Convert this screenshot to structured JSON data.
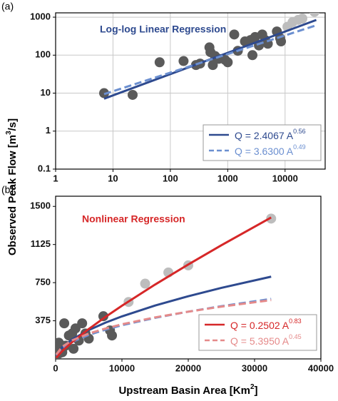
{
  "chart_data": [
    {
      "type": "scatter",
      "panel_label": "(a)",
      "title": "Log-log Linear Regression",
      "title_color": "#2e4a8f",
      "xscale": "log",
      "yscale": "log",
      "xlim": [
        1,
        50000
      ],
      "ylim": [
        0.1,
        1300
      ],
      "xticks": [
        1,
        10,
        100,
        1000,
        10000
      ],
      "yticks": [
        0.1,
        1,
        10,
        100,
        1000
      ],
      "grid": true,
      "legend": "lower right",
      "ylabel_parts": [
        "Observed Peak Flow [m",
        "3",
        "/s]"
      ],
      "series": [
        {
          "mark": "point",
          "color": "#5a5a5a",
          "x": [
            7,
            22,
            65,
            170,
            280,
            330,
            480,
            500,
            550,
            600,
            700,
            900,
            1000,
            1300,
            1500,
            2000,
            2500,
            2700,
            3000,
            3500,
            4000,
            4500,
            5000,
            7200,
            8200,
            8500
          ],
          "values": [
            10,
            9,
            65,
            70,
            55,
            60,
            160,
            120,
            55,
            95,
            80,
            75,
            65,
            350,
            130,
            230,
            250,
            100,
            300,
            180,
            350,
            250,
            200,
            420,
            280,
            230
          ]
        },
        {
          "mark": "point",
          "color": "#bdbdbd",
          "x": [
            11000,
            13500,
            17000,
            20000,
            32500
          ],
          "values": [
            560,
            740,
            850,
            920,
            1380
          ]
        },
        {
          "mark": "line",
          "dash": false,
          "color": "#2e4a8f",
          "text_color": "#2e4a8f",
          "name": "Q = 2.4067 A",
          "name_sup": "0.56",
          "x": [
            7,
            35000
          ],
          "values": [
            7.15,
            843
          ]
        },
        {
          "mark": "line",
          "dash": true,
          "color": "#6b8fd0",
          "text_color": "#6b8fd0",
          "name": "Q = 3.6300 A",
          "name_sup": "0.49",
          "x": [
            7,
            35000
          ],
          "values": [
            9.42,
            611
          ]
        }
      ]
    },
    {
      "type": "scatter",
      "panel_label": "(b)",
      "title": "Nonlinear Regression",
      "title_color": "#d62728",
      "xscale": "linear",
      "yscale": "linear",
      "xlim": [
        0,
        40000
      ],
      "ylim": [
        0,
        1600
      ],
      "xticks": [
        0,
        10000,
        20000,
        30000,
        40000
      ],
      "yticks": [
        375,
        750,
        1125,
        1500
      ],
      "grid": false,
      "legend": "lower right",
      "xlabel_parts": [
        "Upstream Basin Area [Km",
        "2",
        "]"
      ],
      "series": [
        {
          "mark": "point",
          "color": "#5a5a5a",
          "x": [
            7,
            22,
            65,
            170,
            280,
            330,
            480,
            500,
            550,
            600,
            700,
            900,
            1000,
            1300,
            1500,
            2000,
            2500,
            2700,
            3000,
            3500,
            4000,
            4500,
            5000,
            7200,
            8200,
            8500
          ],
          "values": [
            10,
            9,
            65,
            70,
            55,
            60,
            160,
            120,
            55,
            95,
            80,
            75,
            65,
            350,
            130,
            230,
            250,
            100,
            300,
            180,
            350,
            250,
            200,
            420,
            280,
            230
          ]
        },
        {
          "mark": "point",
          "color": "#bdbdbd",
          "x": [
            11000,
            13500,
            17000,
            20000,
            32500
          ],
          "values": [
            560,
            740,
            850,
            920,
            1380
          ]
        },
        {
          "mark": "line",
          "dash": false,
          "color": "#2e4a8f",
          "x": [
            100,
            1000,
            2500,
            5000,
            7500,
            10000,
            15000,
            20000,
            25000,
            32500
          ],
          "values": [
            31.7,
            115.2,
            192.3,
            283.7,
            356.1,
            418.3,
            525.0,
            616.4,
            698.8,
            808.7
          ]
        },
        {
          "mark": "line",
          "dash": true,
          "color": "#6b8fd0",
          "x": [
            100,
            1000,
            2500,
            5000,
            7500,
            10000,
            15000,
            20000,
            25000,
            32500
          ],
          "values": [
            34.7,
            107.1,
            167.7,
            235.6,
            287.5,
            331.1,
            404.0,
            464.6,
            518.7,
            590.2
          ]
        },
        {
          "mark": "line",
          "dash": false,
          "color": "#d62728",
          "text_color": "#d62728",
          "name": "Q = 0.2502 A",
          "name_sup": "0.83",
          "x": [
            100,
            1000,
            2500,
            5000,
            7500,
            10000,
            15000,
            20000,
            25000,
            32500
          ],
          "values": [
            11.4,
            77.3,
            165.4,
            294.0,
            412.1,
            522.7,
            731.3,
            928.5,
            1118.1,
            1390.6
          ]
        },
        {
          "mark": "line",
          "dash": true,
          "color": "#e58a8a",
          "text_color": "#e58a8a",
          "name": "Q = 5.3950 A",
          "name_sup": "0.45",
          "x": [
            100,
            1000,
            2500,
            5000,
            7500,
            10000,
            15000,
            20000,
            25000,
            32500
          ],
          "values": [
            42.8,
            120.8,
            182.4,
            249.2,
            298.9,
            340.4,
            408.4,
            464.5,
            514.1,
            578.3
          ]
        }
      ]
    }
  ]
}
